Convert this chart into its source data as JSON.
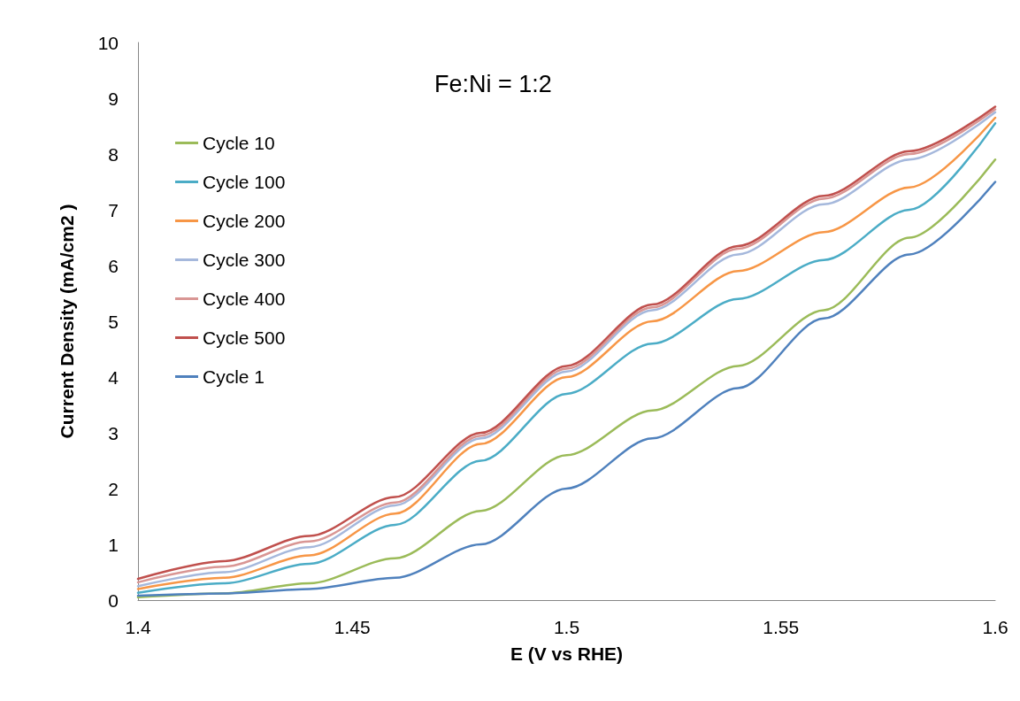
{
  "chart_data": {
    "type": "line",
    "title": "Fe:Ni = 1:2",
    "xlabel": "E (V vs RHE)",
    "ylabel": "Current Density (mA/cm2 )",
    "x": [
      1.4,
      1.42,
      1.44,
      1.46,
      1.48,
      1.5,
      1.52,
      1.54,
      1.56,
      1.58,
      1.6
    ],
    "series": [
      {
        "name": "Cycle 10",
        "color": "#9bbb59",
        "values": [
          0.05,
          0.12,
          0.3,
          0.75,
          1.6,
          2.6,
          3.4,
          4.2,
          5.2,
          6.5,
          7.9
        ]
      },
      {
        "name": "Cycle 100",
        "color": "#4bacc6",
        "values": [
          0.13,
          0.3,
          0.65,
          1.35,
          2.5,
          3.7,
          4.6,
          5.4,
          6.1,
          7.0,
          8.55
        ]
      },
      {
        "name": "Cycle 200",
        "color": "#f79646",
        "values": [
          0.2,
          0.4,
          0.8,
          1.55,
          2.8,
          4.0,
          5.0,
          5.9,
          6.6,
          7.4,
          8.65
        ]
      },
      {
        "name": "Cycle 300",
        "color": "#a5b8dc",
        "values": [
          0.25,
          0.5,
          0.95,
          1.7,
          2.9,
          4.1,
          5.2,
          6.2,
          7.1,
          7.9,
          8.75
        ]
      },
      {
        "name": "Cycle 400",
        "color": "#d99694",
        "values": [
          0.32,
          0.6,
          1.05,
          1.75,
          2.95,
          4.15,
          5.25,
          6.3,
          7.2,
          8.0,
          8.8
        ]
      },
      {
        "name": "Cycle 500",
        "color": "#c0504d",
        "values": [
          0.38,
          0.7,
          1.15,
          1.85,
          3.0,
          4.2,
          5.3,
          6.35,
          7.25,
          8.05,
          8.85
        ]
      },
      {
        "name": "Cycle 1",
        "color": "#4f81bd",
        "values": [
          0.08,
          0.12,
          0.2,
          0.4,
          1.0,
          2.0,
          2.9,
          3.8,
          5.05,
          6.2,
          7.5
        ]
      }
    ],
    "xlim": [
      1.4,
      1.6
    ],
    "xticks": [
      1.4,
      1.45,
      1.5,
      1.55,
      1.6
    ],
    "ylim": [
      0,
      10
    ],
    "yticks": [
      0,
      1,
      2,
      3,
      4,
      5,
      6,
      7,
      8,
      9,
      10
    ],
    "grid": false,
    "legend": "left",
    "marker": "none",
    "line_style": "solid"
  }
}
